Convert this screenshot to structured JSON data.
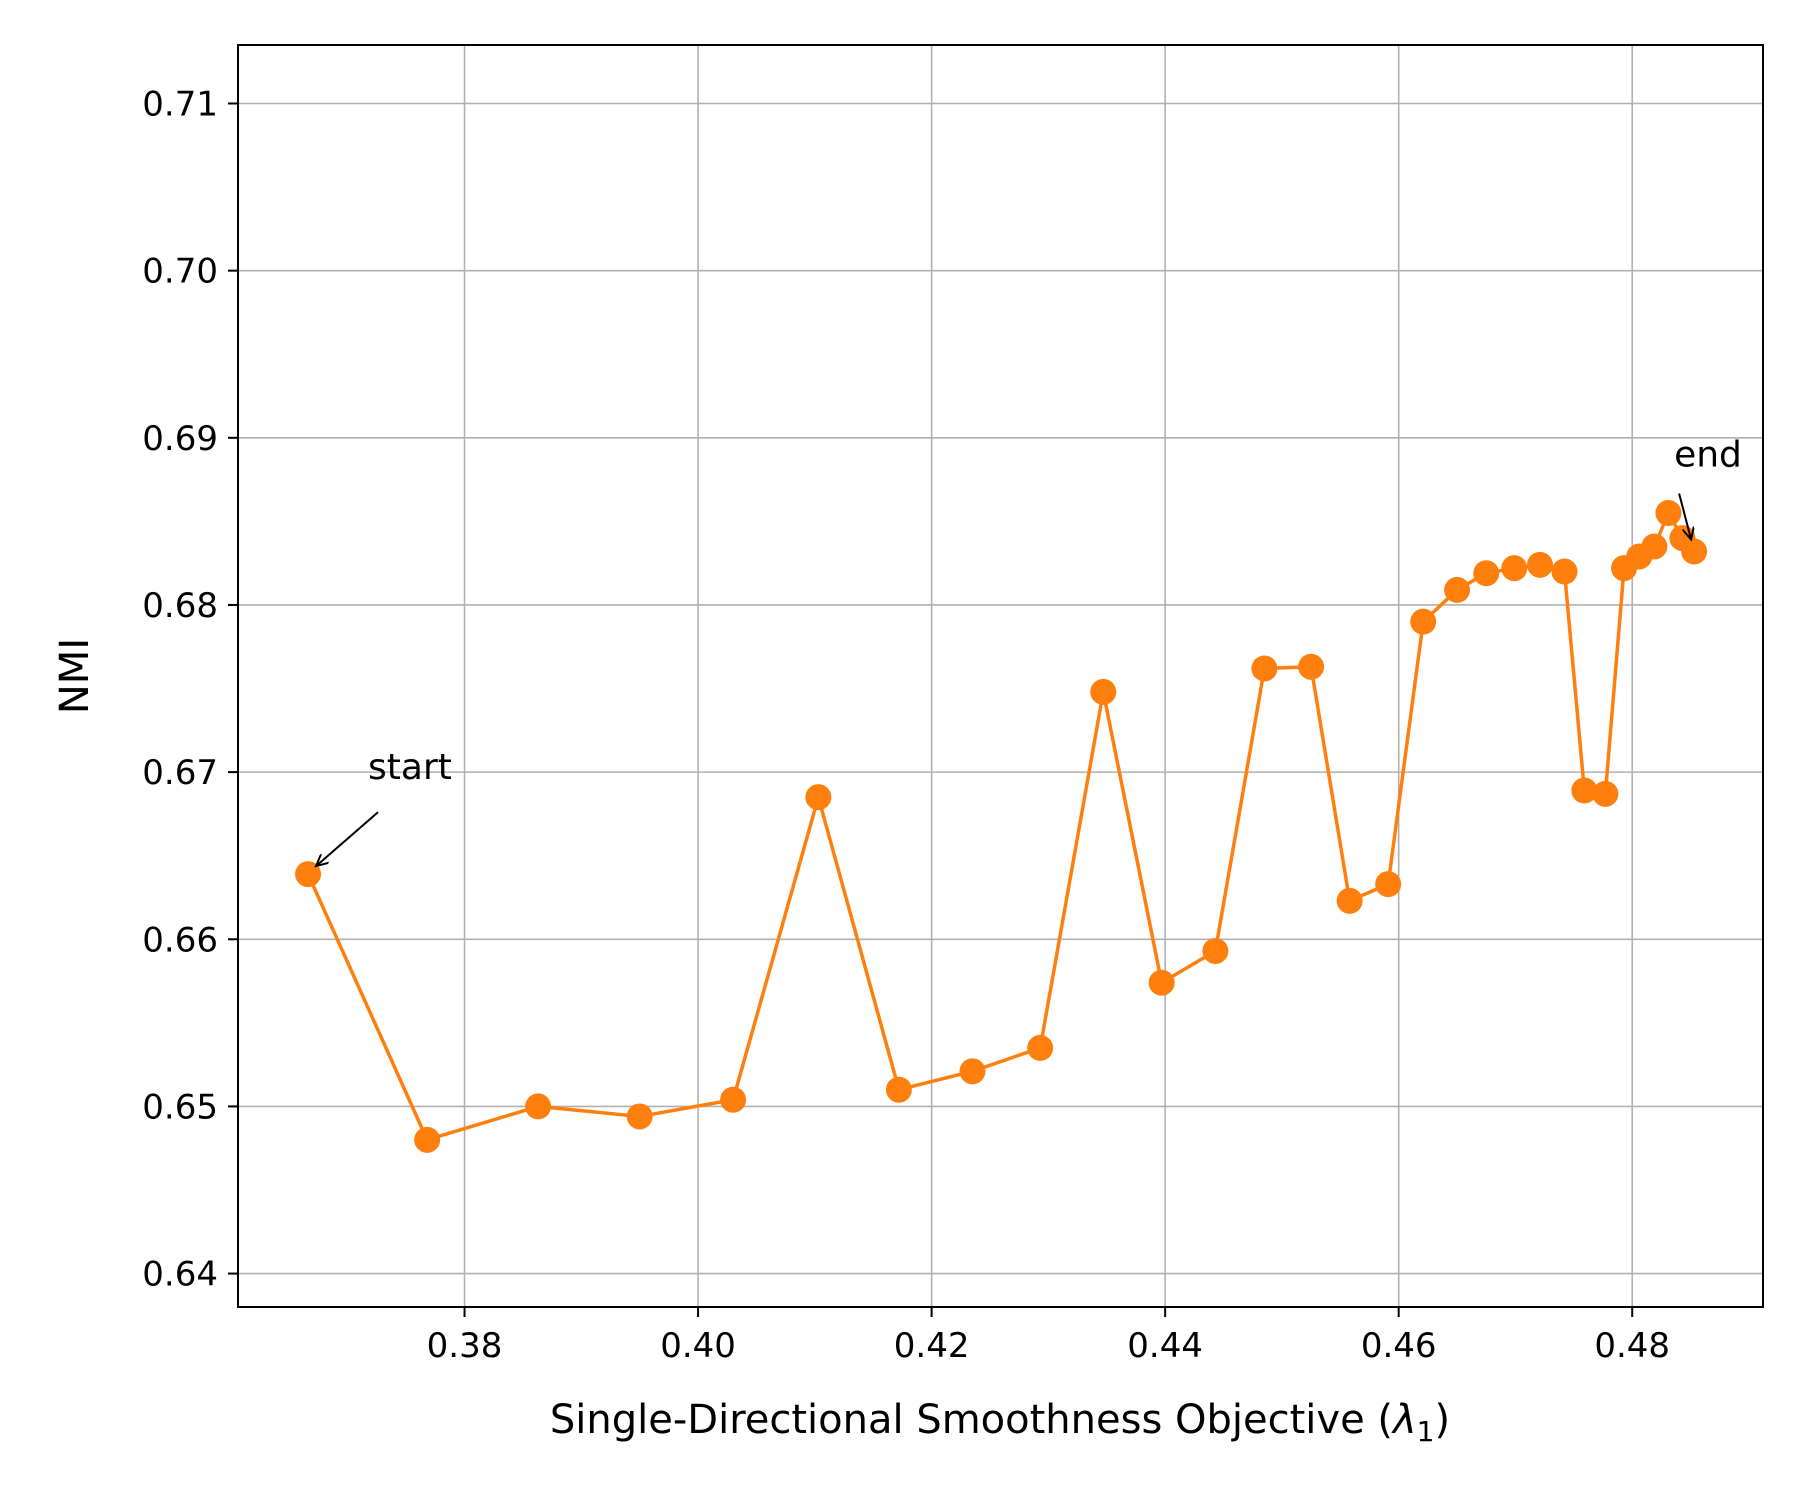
{
  "chart_data": {
    "type": "line",
    "title": "",
    "xlabel": "Single-Directional Smoothness Objective (",
    "xlabel_symbol": "λ",
    "xlabel_subscript": "1",
    "xlabel_close": ")",
    "ylabel": "NMI",
    "xlim": [
      0.3606,
      0.4912
    ],
    "ylim": [
      0.638,
      0.7135
    ],
    "x_ticks": [
      0.38,
      0.4,
      0.42,
      0.44,
      0.46,
      0.48
    ],
    "x_tick_labels": [
      "0.38",
      "0.40",
      "0.42",
      "0.44",
      "0.46",
      "0.48"
    ],
    "y_ticks": [
      0.64,
      0.65,
      0.66,
      0.67,
      0.68,
      0.69,
      0.7,
      0.71
    ],
    "y_tick_labels": [
      "0.64",
      "0.65",
      "0.66",
      "0.67",
      "0.68",
      "0.69",
      "0.70",
      "0.71"
    ],
    "grid": true,
    "color": "#ff7f0e",
    "series": [
      {
        "x": [
          0.3666,
          0.3768,
          0.3863,
          0.395,
          0.403,
          0.4103,
          0.4172,
          0.4235,
          0.4293,
          0.4347,
          0.4397,
          0.4443,
          0.4485,
          0.4525,
          0.4558,
          0.4591,
          0.4621,
          0.465,
          0.4675,
          0.4699,
          0.4721,
          0.4742,
          0.4759,
          0.4777,
          0.4793,
          0.4806,
          0.4819,
          0.4831,
          0.4843,
          0.4853
        ],
        "y": [
          0.6639,
          0.648,
          0.65,
          0.6494,
          0.6504,
          0.6685,
          0.651,
          0.6521,
          0.6535,
          0.6748,
          0.6574,
          0.6593,
          0.6762,
          0.6763,
          0.6623,
          0.6633,
          0.679,
          0.6809,
          0.6819,
          0.6822,
          0.6824,
          0.682,
          0.6689,
          0.6687,
          0.6822,
          0.6829,
          0.6835,
          0.6855,
          0.684,
          0.6832
        ]
      }
    ],
    "annotations": [
      {
        "text": "start",
        "point_index": 0
      },
      {
        "text": "end",
        "point_index": 29
      }
    ]
  }
}
